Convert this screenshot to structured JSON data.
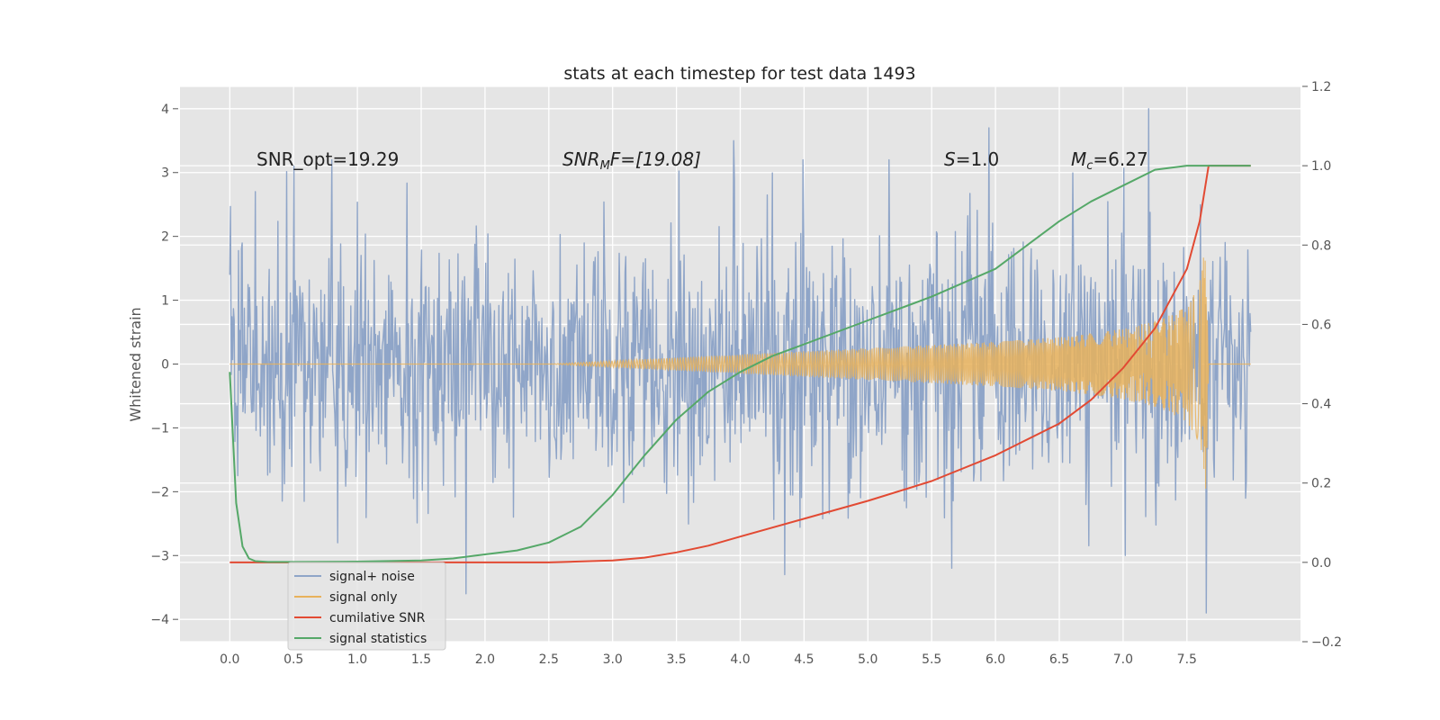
{
  "chart_data": {
    "type": "line",
    "title": "stats at each timestep for test data 1493",
    "xlabel": "",
    "ylabel": "Whitened strain",
    "xlim": [
      -0.39,
      8.39
    ],
    "ylim": [
      -4.35,
      4.35
    ],
    "y2lim": [
      -0.2,
      1.2
    ],
    "x_ticks": [
      "0.0",
      "0.5",
      "1.0",
      "1.5",
      "2.0",
      "2.5",
      "3.0",
      "3.5",
      "4.0",
      "4.5",
      "5.0",
      "5.5",
      "6.0",
      "6.5",
      "7.0",
      "7.5"
    ],
    "y_ticks": [
      "4",
      "3",
      "2",
      "1",
      "0",
      "−1",
      "−2",
      "−3",
      "−4"
    ],
    "y2_ticks": [
      "1.2",
      "1.0",
      "0.8",
      "0.6",
      "0.4",
      "0.2",
      "0.0",
      "−0.2"
    ],
    "grid": true,
    "legend_position": "lower-left",
    "annotations": {
      "snr_opt": "SNR_opt=19.29",
      "snr_mf_label": "SNR",
      "snr_mf_sub": "M",
      "snr_mf_tail": "F=[19.08]",
      "s_label": "S",
      "s_value": "=1.0",
      "mc_label": "M",
      "mc_sub": "c",
      "mc_value": "=6.27"
    },
    "series": [
      {
        "name": "signal+ noise",
        "axis": "left",
        "color": "#8fa5c8",
        "kind": "noise",
        "x_range": [
          0.0,
          8.0
        ],
        "typical_amplitude": 1.0,
        "peak_values": [
          {
            "x": 0.2,
            "y": 2.7
          },
          {
            "x": 0.5,
            "y": 3.1
          },
          {
            "x": 0.8,
            "y": 3.2
          },
          {
            "x": 1.85,
            "y": -3.6
          },
          {
            "x": 3.95,
            "y": 3.5
          },
          {
            "x": 4.35,
            "y": -3.3
          },
          {
            "x": 5.95,
            "y": 3.7
          },
          {
            "x": 7.2,
            "y": 4.0
          },
          {
            "x": 7.65,
            "y": -3.9
          }
        ]
      },
      {
        "name": "signal only",
        "axis": "left",
        "color": "#e8b25c",
        "kind": "chirp",
        "envelope": [
          {
            "x": 0.0,
            "y": 0.0
          },
          {
            "x": 2.5,
            "y": 0.0
          },
          {
            "x": 3.0,
            "y": 0.05
          },
          {
            "x": 3.5,
            "y": 0.1
          },
          {
            "x": 4.0,
            "y": 0.15
          },
          {
            "x": 5.0,
            "y": 0.25
          },
          {
            "x": 6.0,
            "y": 0.35
          },
          {
            "x": 6.5,
            "y": 0.42
          },
          {
            "x": 7.0,
            "y": 0.55
          },
          {
            "x": 7.3,
            "y": 0.7
          },
          {
            "x": 7.5,
            "y": 0.9
          },
          {
            "x": 7.6,
            "y": 1.3
          },
          {
            "x": 7.65,
            "y": 2.0
          },
          {
            "x": 7.67,
            "y": 0.0
          },
          {
            "x": 8.0,
            "y": 0.0
          }
        ]
      },
      {
        "name": "cumilative SNR",
        "axis": "right",
        "color": "#e24a33",
        "x": [
          0.0,
          0.5,
          1.0,
          1.5,
          2.0,
          2.5,
          3.0,
          3.25,
          3.5,
          3.75,
          4.0,
          4.5,
          5.0,
          5.5,
          6.0,
          6.5,
          6.75,
          7.0,
          7.25,
          7.5,
          7.6,
          7.67,
          8.0
        ],
        "values": [
          0.0,
          0.0,
          0.0,
          0.0,
          0.0,
          0.0,
          0.005,
          0.012,
          0.025,
          0.042,
          0.065,
          0.11,
          0.155,
          0.205,
          0.27,
          0.35,
          0.41,
          0.49,
          0.59,
          0.74,
          0.86,
          1.0,
          1.0
        ]
      },
      {
        "name": "signal statistics",
        "axis": "right",
        "color": "#55a868",
        "x": [
          0.0,
          0.05,
          0.1,
          0.15,
          0.2,
          0.3,
          0.5,
          1.0,
          1.5,
          1.75,
          2.0,
          2.25,
          2.5,
          2.75,
          3.0,
          3.25,
          3.5,
          3.75,
          4.0,
          4.25,
          4.5,
          5.0,
          5.5,
          6.0,
          6.25,
          6.5,
          6.75,
          7.0,
          7.25,
          7.5,
          7.67,
          8.0
        ],
        "values": [
          0.48,
          0.15,
          0.04,
          0.01,
          0.003,
          0.001,
          0.001,
          0.002,
          0.005,
          0.01,
          0.02,
          0.03,
          0.05,
          0.09,
          0.17,
          0.27,
          0.36,
          0.43,
          0.48,
          0.52,
          0.55,
          0.61,
          0.67,
          0.74,
          0.8,
          0.86,
          0.91,
          0.95,
          0.99,
          1.0,
          1.0,
          1.0
        ]
      }
    ]
  },
  "colors": {
    "plot_background": "#e5e5e5",
    "grid": "#ffffff",
    "tick_text": "#555555"
  }
}
